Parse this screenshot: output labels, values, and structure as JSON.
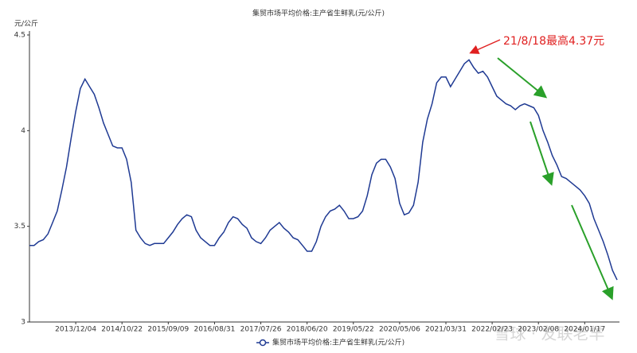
{
  "chart_data": {
    "type": "line",
    "title": "集贸市场平均价格:主产省生鲜乳(元/公斤)",
    "y_label": "元/公斤",
    "annotation": "21/8/18最高4.37元",
    "watermark": "雪球 · 友联老羊",
    "categories": [
      null,
      null,
      null,
      null,
      null,
      null,
      null,
      null,
      null,
      null,
      "2013/12/04",
      null,
      null,
      null,
      null,
      null,
      null,
      null,
      null,
      null,
      "2014/10/22",
      null,
      null,
      null,
      null,
      null,
      null,
      null,
      null,
      null,
      "2015/09/09",
      null,
      null,
      null,
      null,
      null,
      null,
      null,
      null,
      null,
      "2016/08/31",
      null,
      null,
      null,
      null,
      null,
      null,
      null,
      null,
      null,
      "2017/07/26",
      null,
      null,
      null,
      null,
      null,
      null,
      null,
      null,
      null,
      "2018/06/20",
      null,
      null,
      null,
      null,
      null,
      null,
      null,
      null,
      null,
      "2019/05/22",
      null,
      null,
      null,
      null,
      null,
      null,
      null,
      null,
      null,
      "2020/05/06",
      null,
      null,
      null,
      null,
      null,
      null,
      null,
      null,
      null,
      "2021/03/31",
      null,
      null,
      null,
      null,
      null,
      null,
      null,
      null,
      null,
      "2022/02/23",
      null,
      null,
      null,
      null,
      null,
      null,
      null,
      null,
      null,
      "2023/02/08",
      null,
      null,
      null,
      null,
      null,
      null,
      null,
      null,
      null,
      "2024/01/17",
      null,
      null,
      null,
      null,
      null,
      null,
      null
    ],
    "series": [
      {
        "name": "集贸市场平均价格:主产省生鲜乳(元/公斤)",
        "color": "#1f3a93",
        "values": [
          3.4,
          3.4,
          3.42,
          3.43,
          3.46,
          3.52,
          3.58,
          3.69,
          3.81,
          3.96,
          4.1,
          4.22,
          4.27,
          4.23,
          4.19,
          4.12,
          4.04,
          3.98,
          3.92,
          3.91,
          3.91,
          3.85,
          3.73,
          3.48,
          3.44,
          3.41,
          3.4,
          3.41,
          3.41,
          3.41,
          3.44,
          3.47,
          3.51,
          3.54,
          3.56,
          3.55,
          3.48,
          3.44,
          3.42,
          3.4,
          3.4,
          3.44,
          3.47,
          3.52,
          3.55,
          3.54,
          3.51,
          3.49,
          3.44,
          3.42,
          3.41,
          3.44,
          3.48,
          3.5,
          3.52,
          3.49,
          3.47,
          3.44,
          3.43,
          3.4,
          3.37,
          3.37,
          3.42,
          3.5,
          3.55,
          3.58,
          3.59,
          3.61,
          3.58,
          3.54,
          3.54,
          3.55,
          3.58,
          3.66,
          3.77,
          3.83,
          3.85,
          3.85,
          3.81,
          3.75,
          3.62,
          3.56,
          3.57,
          3.61,
          3.73,
          3.94,
          4.06,
          4.14,
          4.25,
          4.28,
          4.28,
          4.23,
          4.27,
          4.31,
          4.35,
          4.37,
          4.33,
          4.3,
          4.31,
          4.28,
          4.23,
          4.18,
          4.16,
          4.14,
          4.13,
          4.11,
          4.13,
          4.14,
          4.13,
          4.12,
          4.08,
          4.0,
          3.94,
          3.87,
          3.82,
          3.76,
          3.75,
          3.73,
          3.71,
          3.69,
          3.66,
          3.62,
          3.54,
          3.48,
          3.42,
          3.35,
          3.27,
          3.22
        ]
      }
    ],
    "ylim": [
      3,
      4.5
    ],
    "yticks": [
      3,
      3.5,
      4,
      4.5
    ],
    "grid": false
  }
}
